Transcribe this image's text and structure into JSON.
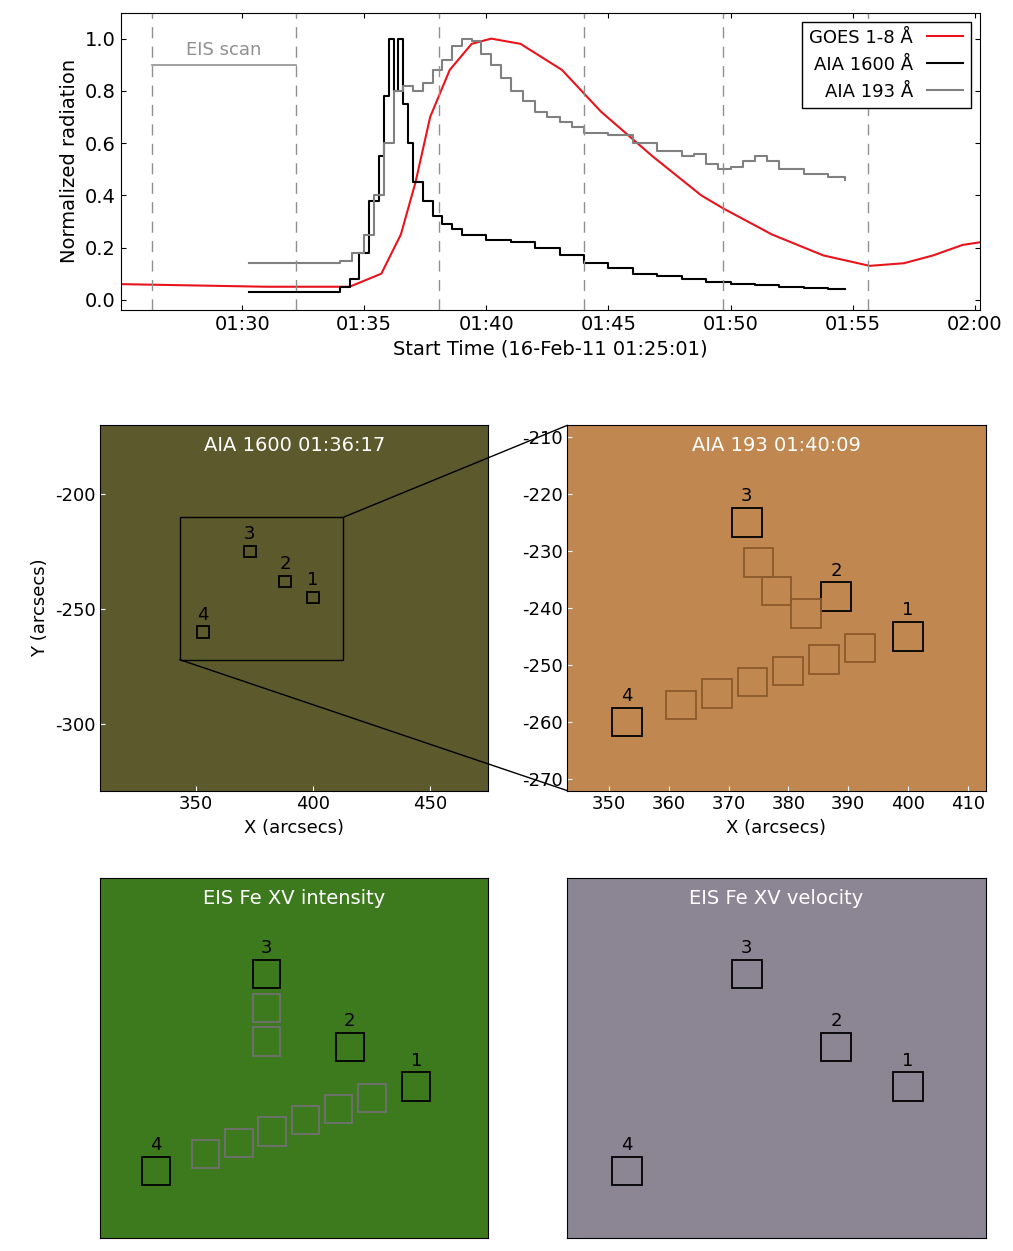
{
  "chart_data": [
    {
      "type": "line",
      "xlabel": "Start Time (16-Feb-11 01:25:01)",
      "ylabel": "Normalized radiation",
      "xlim": [
        25.02,
        60.2
      ],
      "xticks": [
        {
          "value": 30,
          "label": "01:30"
        },
        {
          "value": 35,
          "label": "01:35"
        },
        {
          "value": 40,
          "label": "01:40"
        },
        {
          "value": 45,
          "label": "01:45"
        },
        {
          "value": 50,
          "label": "01:50"
        },
        {
          "value": 55,
          "label": "01:55"
        },
        {
          "value": 60,
          "label": "02:00"
        }
      ],
      "ylim": [
        -0.04,
        1.1
      ],
      "yticks": [
        {
          "value": 0,
          "label": "0.0"
        },
        {
          "value": 0.2,
          "label": "0.2"
        },
        {
          "value": 0.4,
          "label": "0.4"
        },
        {
          "value": 0.6,
          "label": "0.6"
        },
        {
          "value": 0.8,
          "label": "0.8"
        },
        {
          "value": 1,
          "label": "1.0"
        }
      ],
      "legend": "upper right",
      "vlines": [
        26.3,
        32.2,
        38.05,
        44.0,
        49.7,
        55.65
      ],
      "annotations": [
        {
          "text": "EIS scan",
          "x": [
            26.3,
            32.2
          ],
          "y": 0.9
        }
      ],
      "series": [
        {
          "name": "GOES 1-8 Å",
          "color": "#e8141c",
          "line_style": "solid",
          "x": [
            25.02,
            28,
            31,
            33,
            34.4,
            35.7,
            36.5,
            37.1,
            37.7,
            38.5,
            39.4,
            40.2,
            41.4,
            43.1,
            44.7,
            46.8,
            48.8,
            49.7,
            51.7,
            53.8,
            55.7,
            57.1,
            58.3,
            59.5,
            60.2
          ],
          "values": [
            0.06,
            0.055,
            0.05,
            0.05,
            0.05,
            0.1,
            0.25,
            0.45,
            0.7,
            0.88,
            0.98,
            1.0,
            0.98,
            0.88,
            0.72,
            0.55,
            0.4,
            0.35,
            0.25,
            0.17,
            0.13,
            0.14,
            0.17,
            0.21,
            0.22
          ]
        },
        {
          "name": "AIA 1600 Å",
          "color": "#000000",
          "line_style": "step",
          "x": [
            30.3,
            32,
            34.0,
            34.4,
            34.8,
            35.2,
            35.6,
            35.8,
            36.0,
            36.2,
            36.4,
            36.6,
            36.8,
            37.0,
            37.4,
            37.8,
            38.2,
            38.6,
            39,
            40,
            41,
            42,
            43,
            44,
            45,
            46,
            47,
            48,
            49,
            50,
            51,
            52,
            53,
            54,
            54.7
          ],
          "values": [
            0.03,
            0.03,
            0.05,
            0.08,
            0.18,
            0.38,
            0.55,
            0.78,
            1.0,
            0.8,
            1.0,
            0.75,
            0.6,
            0.45,
            0.38,
            0.32,
            0.29,
            0.27,
            0.25,
            0.23,
            0.22,
            0.2,
            0.17,
            0.14,
            0.12,
            0.1,
            0.09,
            0.08,
            0.07,
            0.06,
            0.055,
            0.05,
            0.045,
            0.04,
            0.04
          ]
        },
        {
          "name": "AIA 193 Å",
          "color": "#808080",
          "line_style": "step",
          "x": [
            30.3,
            33,
            34,
            34.5,
            35,
            35.4,
            35.8,
            36.2,
            36.6,
            37,
            37.4,
            37.8,
            38.2,
            38.6,
            39,
            39.4,
            39.8,
            40.2,
            40.6,
            41,
            41.5,
            42,
            42.5,
            43,
            43.5,
            44,
            45,
            46,
            47,
            48,
            48.5,
            49,
            49.5,
            50,
            50.5,
            51,
            51.5,
            52,
            53,
            54,
            54.7
          ],
          "values": [
            0.14,
            0.14,
            0.15,
            0.18,
            0.25,
            0.4,
            0.6,
            0.8,
            0.82,
            0.8,
            0.83,
            0.88,
            0.92,
            0.97,
            1.0,
            0.99,
            0.94,
            0.9,
            0.85,
            0.8,
            0.76,
            0.72,
            0.7,
            0.68,
            0.66,
            0.64,
            0.63,
            0.6,
            0.57,
            0.55,
            0.56,
            0.52,
            0.5,
            0.51,
            0.53,
            0.55,
            0.53,
            0.5,
            0.48,
            0.47,
            0.46
          ]
        }
      ]
    },
    {
      "type": "image",
      "title": "AIA 1600 01:36:17",
      "color": "#5c5a2c",
      "xlabel": "X (arcsecs)",
      "ylabel": "Y (arcsecs)",
      "xlim": [
        309,
        475
      ],
      "ylim": [
        -329,
        -170
      ],
      "xticks": [
        350,
        400,
        450
      ],
      "yticks": [
        -200,
        -250,
        -300
      ],
      "zoom_region": {
        "x": [
          343,
          413
        ],
        "y": [
          -272,
          -210
        ]
      },
      "box_size": 5,
      "boxes": [
        {
          "x": 400,
          "y": -245,
          "label": "1",
          "color": "#000000"
        },
        {
          "x": 388,
          "y": -238,
          "label": "2",
          "color": "#000000"
        },
        {
          "x": 373,
          "y": -225,
          "label": "3",
          "color": "#000000"
        },
        {
          "x": 353,
          "y": -260,
          "label": "4",
          "color": "#000000"
        }
      ]
    },
    {
      "type": "image",
      "title": "AIA 193 01:40:09",
      "color": "#c08850",
      "xlabel": "X (arcsecs)",
      "xlim": [
        343,
        413
      ],
      "ylim": [
        -272,
        -208
      ],
      "xticks": [
        350,
        360,
        370,
        380,
        390,
        400,
        410
      ],
      "yticks": [
        -270,
        -260,
        -250,
        -240,
        -230,
        -220,
        -210
      ],
      "box_size": 5,
      "boxes": [
        {
          "x": 400,
          "y": -245,
          "label": "1",
          "color": "#000000"
        },
        {
          "x": 388,
          "y": -238,
          "label": "2",
          "color": "#000000"
        },
        {
          "x": 373,
          "y": -225,
          "label": "3",
          "color": "#000000"
        },
        {
          "x": 353,
          "y": -260,
          "label": "4",
          "color": "#000000"
        },
        {
          "x": 375,
          "y": -232,
          "label": null,
          "color": "#8b5a2b"
        },
        {
          "x": 378,
          "y": -237,
          "label": null,
          "color": "#8b5a2b"
        },
        {
          "x": 383,
          "y": -241,
          "label": null,
          "color": "#8b5a2b"
        },
        {
          "x": 362,
          "y": -257,
          "label": null,
          "color": "#8b5a2b"
        },
        {
          "x": 368,
          "y": -255,
          "label": null,
          "color": "#8b5a2b"
        },
        {
          "x": 374,
          "y": -253,
          "label": null,
          "color": "#8b5a2b"
        },
        {
          "x": 380,
          "y": -251,
          "label": null,
          "color": "#8b5a2b"
        },
        {
          "x": 386,
          "y": -249,
          "label": null,
          "color": "#8b5a2b"
        },
        {
          "x": 392,
          "y": -247,
          "label": null,
          "color": "#8b5a2b"
        }
      ]
    },
    {
      "type": "image",
      "title": "EIS Fe XV intensity",
      "color": "#3d7a1e",
      "tick_labels": false,
      "xlim": [
        343,
        413
      ],
      "ylim": [
        -272,
        -208
      ],
      "box_size": 5,
      "boxes": [
        {
          "x": 400,
          "y": -245,
          "label": "1",
          "color": "#000000"
        },
        {
          "x": 388,
          "y": -238,
          "label": "2",
          "color": "#000000"
        },
        {
          "x": 373,
          "y": -225,
          "label": "3",
          "color": "#000000"
        },
        {
          "x": 353,
          "y": -260,
          "label": "4",
          "color": "#000000"
        },
        {
          "x": 373,
          "y": -231,
          "label": null,
          "color": "#707070"
        },
        {
          "x": 373,
          "y": -237,
          "label": null,
          "color": "#707070"
        },
        {
          "x": 362,
          "y": -257,
          "label": null,
          "color": "#707070"
        },
        {
          "x": 368,
          "y": -255,
          "label": null,
          "color": "#707070"
        },
        {
          "x": 374,
          "y": -253,
          "label": null,
          "color": "#707070"
        },
        {
          "x": 380,
          "y": -251,
          "label": null,
          "color": "#707070"
        },
        {
          "x": 386,
          "y": -249,
          "label": null,
          "color": "#707070"
        },
        {
          "x": 392,
          "y": -247,
          "label": null,
          "color": "#707070"
        }
      ]
    },
    {
      "type": "image",
      "title": "EIS Fe XV velocity",
      "color": "#8c8594",
      "tick_labels": false,
      "xlim": [
        343,
        413
      ],
      "ylim": [
        -272,
        -208
      ],
      "box_size": 5,
      "boxes": [
        {
          "x": 400,
          "y": -245,
          "label": "1",
          "color": "#000000"
        },
        {
          "x": 388,
          "y": -238,
          "label": "2",
          "color": "#000000"
        },
        {
          "x": 373,
          "y": -225,
          "label": "3",
          "color": "#000000"
        },
        {
          "x": 353,
          "y": -260,
          "label": "4",
          "color": "#000000"
        }
      ]
    }
  ]
}
